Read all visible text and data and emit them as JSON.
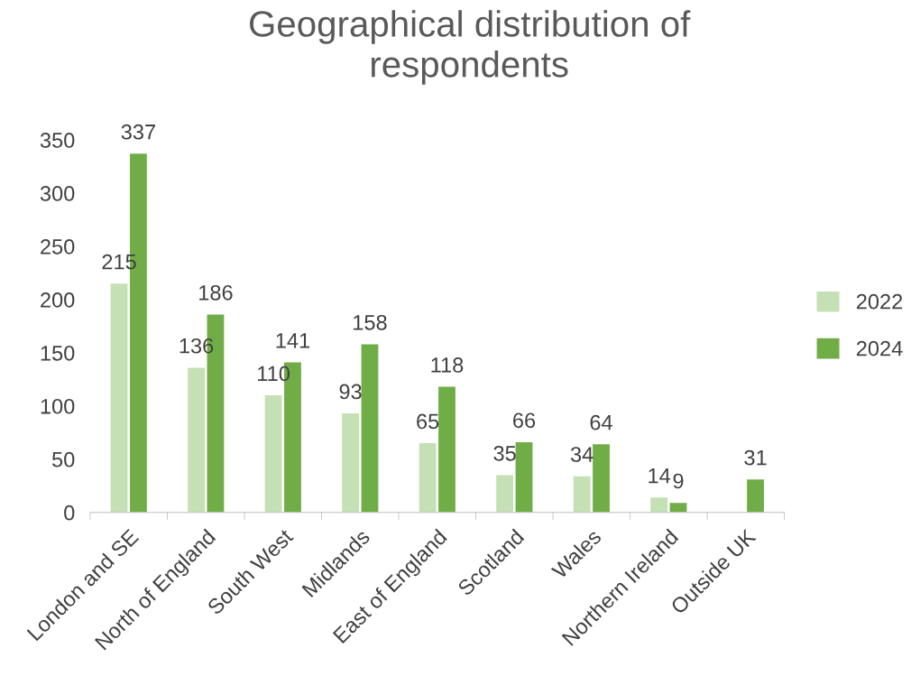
{
  "chart_data": {
    "type": "bar",
    "title": "Geographical distribution of respondents",
    "categories": [
      "London and SE",
      "North of England",
      "South West",
      "Midlands",
      "East of England",
      "Scotland",
      "Wales",
      "Northern Ireland",
      "Outside UK"
    ],
    "series": [
      {
        "name": "2022",
        "color": "#c5e0b4",
        "values": [
          215,
          136,
          110,
          93,
          65,
          35,
          34,
          14,
          null
        ]
      },
      {
        "name": "2024",
        "color": "#70ad47",
        "values": [
          337,
          186,
          141,
          158,
          118,
          66,
          64,
          9,
          31
        ]
      }
    ],
    "ylim": [
      0,
      350
    ],
    "yticks": [
      0,
      50,
      100,
      150,
      200,
      250,
      300,
      350
    ],
    "grid": false,
    "legend": "right",
    "data_labels": true
  }
}
